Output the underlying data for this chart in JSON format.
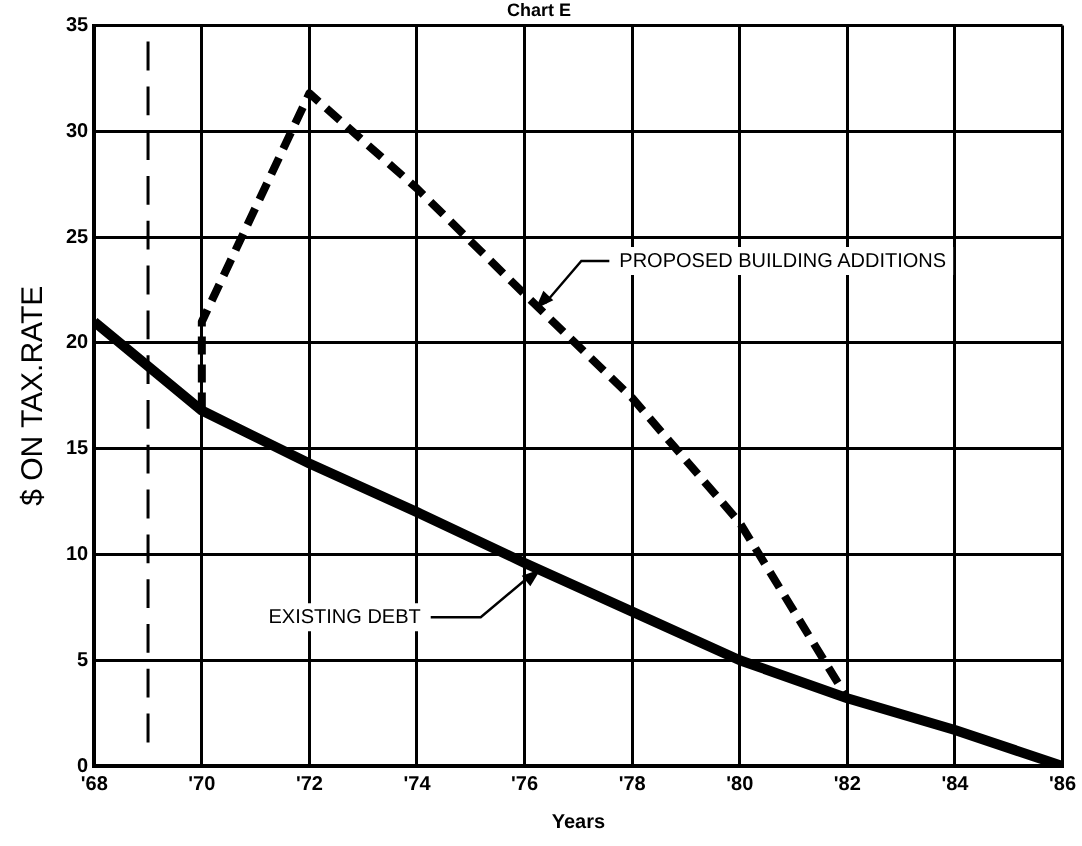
{
  "chart_data": {
    "type": "line",
    "title": "Chart E",
    "xlabel": "Years",
    "ylabel": "$ ON TAX.RATE",
    "xlim": [
      1968,
      1986
    ],
    "xticks": [
      {
        "value": 1968,
        "label": "'68"
      },
      {
        "value": 1970,
        "label": "'70"
      },
      {
        "value": 1972,
        "label": "'72"
      },
      {
        "value": 1974,
        "label": "'74"
      },
      {
        "value": 1976,
        "label": "'76"
      },
      {
        "value": 1978,
        "label": "'78"
      },
      {
        "value": 1980,
        "label": "'80"
      },
      {
        "value": 1982,
        "label": "'82"
      },
      {
        "value": 1984,
        "label": "'84"
      },
      {
        "value": 1986,
        "label": "'86"
      }
    ],
    "ylim": [
      0,
      35
    ],
    "yticks": [
      0,
      5,
      10,
      15,
      20,
      25,
      30,
      35
    ],
    "grid": true,
    "legend": false,
    "marker": "none",
    "series": [
      {
        "color": "#000000",
        "line_style": "solid",
        "x": [
          1968,
          1970,
          1972,
          1974,
          1976,
          1978,
          1980,
          1982,
          1984,
          1986
        ],
        "values": [
          21,
          16.8,
          14.3,
          12,
          9.6,
          7.3,
          5,
          3.2,
          1.7,
          0
        ]
      },
      {
        "color": "#000000",
        "line_style": "dashed",
        "x": [
          1970,
          1970,
          1972,
          1974,
          1976,
          1978,
          1980,
          1982
        ],
        "values": [
          16.8,
          21,
          31.8,
          27.3,
          22.3,
          17.4,
          11.5,
          3.2
        ]
      }
    ],
    "ref_lines": [
      {
        "axis": "x",
        "value": 1969,
        "color": "#000000",
        "line_style": "dashed"
      }
    ],
    "annotations": [
      {
        "text": "PROPOSED BUILDING ADDITIONS",
        "x": 1976.2,
        "y": 21.6
      },
      {
        "text": "EXISTING DEBT",
        "x": 1976.3,
        "y": 9.3
      }
    ]
  }
}
